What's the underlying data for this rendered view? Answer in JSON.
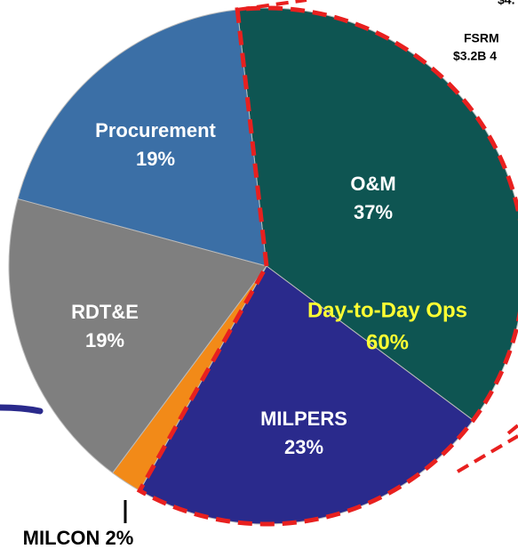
{
  "chart_data": {
    "type": "pie",
    "categories": [
      "O&M",
      "MILPERS",
      "MILCON",
      "RDT&E",
      "Procurement"
    ],
    "values": [
      37,
      23,
      2,
      19,
      19
    ],
    "value_labels": [
      "37%",
      "23%",
      "2%",
      "19%",
      "19%"
    ],
    "colors": [
      "#0e5552",
      "#2a2a8c",
      "#f28a18",
      "#7f7f7f",
      "#3b6fa6"
    ],
    "annotations": [
      {
        "text": "Day-to-Day Ops",
        "value_label": "60%",
        "color": "#ffff33"
      },
      {
        "text": "FSRM",
        "value_label": "$3.2B 4"
      },
      {
        "text": "$4."
      }
    ]
  }
}
